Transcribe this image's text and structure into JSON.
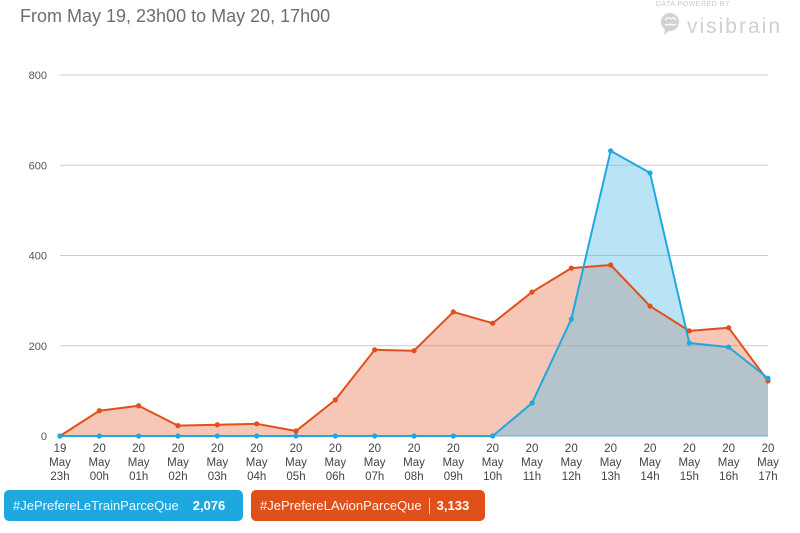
{
  "header": {
    "title": "From May 19, 23h00 to May 20, 17h00"
  },
  "branding": {
    "tagline": "DATA POWERED BY",
    "name": "visibrain",
    "icon": "brain-bubble-icon"
  },
  "legend": [
    {
      "label": "#JePrefereLeTrainParceQue",
      "count": "2,076",
      "color": "#1fa8df"
    },
    {
      "label": "#JePrefereLAvionParceQue",
      "count": "3,133",
      "color": "#e0501b"
    }
  ],
  "chart_data": {
    "type": "area",
    "title": "From May 19, 23h00 to May 20, 17h00",
    "xlabel": "",
    "ylabel": "",
    "ylim": [
      0,
      800
    ],
    "yticks": [
      0,
      200,
      400,
      600,
      800
    ],
    "grid": true,
    "legend_position": "bottom-left",
    "categories": [
      [
        "19",
        "May",
        "23h"
      ],
      [
        "20",
        "May",
        "00h"
      ],
      [
        "20",
        "May",
        "01h"
      ],
      [
        "20",
        "May",
        "02h"
      ],
      [
        "20",
        "May",
        "03h"
      ],
      [
        "20",
        "May",
        "04h"
      ],
      [
        "20",
        "May",
        "05h"
      ],
      [
        "20",
        "May",
        "06h"
      ],
      [
        "20",
        "May",
        "07h"
      ],
      [
        "20",
        "May",
        "08h"
      ],
      [
        "20",
        "May",
        "09h"
      ],
      [
        "20",
        "May",
        "10h"
      ],
      [
        "20",
        "May",
        "11h"
      ],
      [
        "20",
        "May",
        "12h"
      ],
      [
        "20",
        "May",
        "13h"
      ],
      [
        "20",
        "May",
        "14h"
      ],
      [
        "20",
        "May",
        "15h"
      ],
      [
        "20",
        "May",
        "16h"
      ],
      [
        "20",
        "May",
        "17h"
      ]
    ],
    "series": [
      {
        "name": "#JePrefereLAvionParceQue",
        "total": 3133,
        "color": "#e0501b",
        "fill": "rgba(233,120,80,0.42)",
        "values": [
          0,
          56,
          67,
          23,
          25,
          27,
          11,
          80,
          191,
          189,
          275,
          250,
          319,
          372,
          379,
          288,
          233,
          240,
          122
        ]
      },
      {
        "name": "#JePrefereLeTrainParceQue",
        "total": 2076,
        "color": "#1fa8df",
        "fill": "rgba(90,190,230,0.42)",
        "values": [
          0,
          0,
          0,
          0,
          0,
          0,
          0,
          0,
          0,
          0,
          0,
          0,
          73,
          259,
          632,
          583,
          206,
          197,
          128
        ]
      }
    ]
  }
}
